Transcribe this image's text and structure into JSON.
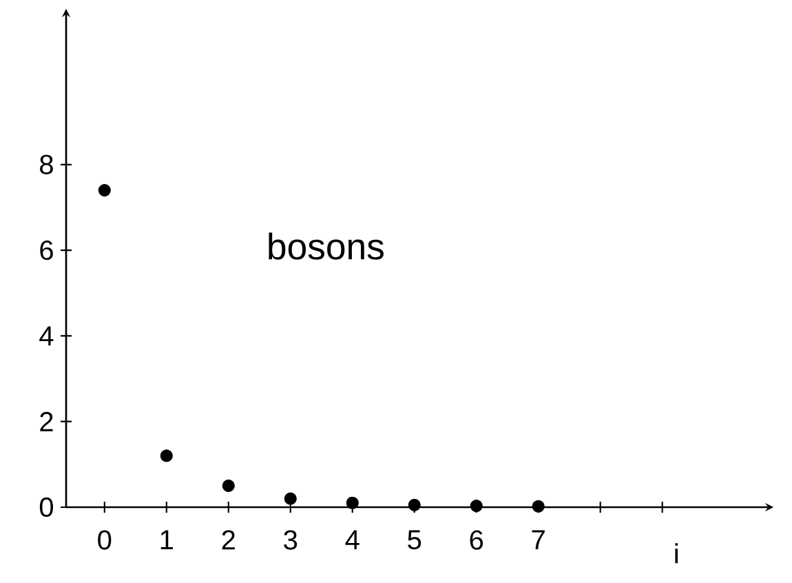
{
  "chart_data": {
    "type": "scatter",
    "xlabel": "i",
    "annotations": [
      "bosons"
    ],
    "x": [
      0,
      1,
      2,
      3,
      4,
      5,
      6,
      7
    ],
    "series": [
      {
        "color": "#000000",
        "values": [
          7.4,
          1.2,
          0.5,
          0.2,
          0.1,
          0.05,
          0.03,
          0.02
        ]
      }
    ],
    "xlim": [
      -0.62,
      10.7
    ],
    "xticks": [
      0,
      1,
      2,
      3,
      4,
      5,
      6,
      7,
      {
        "value": 8,
        "label": null
      },
      {
        "value": 9,
        "label": null
      }
    ],
    "ylim": [
      0,
      11.5
    ],
    "yticks": [
      0,
      2,
      4,
      6,
      8
    ],
    "marker": "circle"
  }
}
